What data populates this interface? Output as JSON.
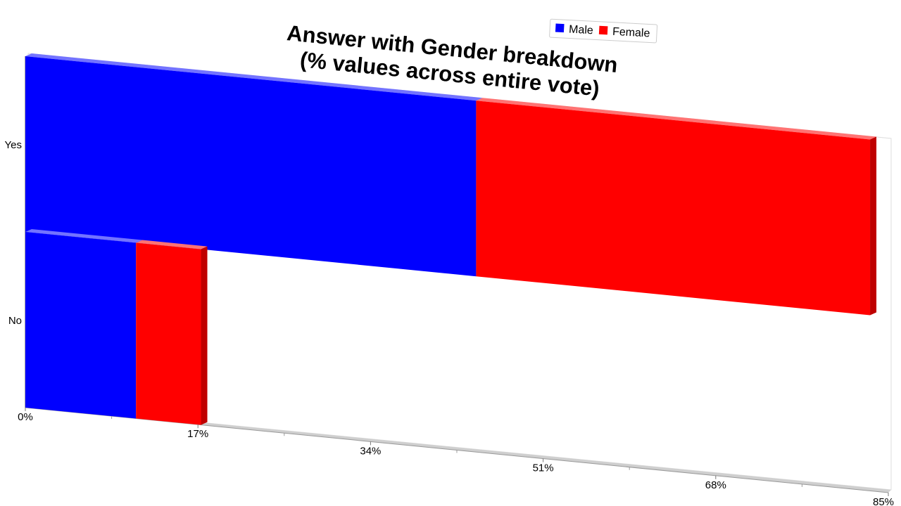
{
  "chart_data": {
    "type": "bar",
    "orientation": "horizontal",
    "stacked": true,
    "three_d": true,
    "title": [
      "Answer with Gender breakdown",
      "(% values across entire vote)"
    ],
    "categories": [
      "Yes",
      "No"
    ],
    "series": [
      {
        "name": "Male",
        "values": [
          44.4,
          10.9
        ],
        "color": "#0000ff"
      },
      {
        "name": "Female",
        "values": [
          38.8,
          6.4
        ],
        "color": "#ff0000"
      }
    ],
    "x_ticks": [
      "0%",
      "17%",
      "34%",
      "51%",
      "68%",
      "85%"
    ],
    "xlim": [
      0,
      85
    ],
    "grid": false,
    "legend_position": "top-right"
  }
}
